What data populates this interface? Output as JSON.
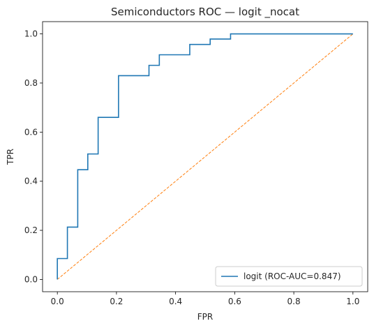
{
  "chart_data": {
    "type": "line",
    "title": "Semiconductors ROC — logit _nocat",
    "xlabel": "FPR",
    "ylabel": "TPR",
    "xlim": [
      -0.05,
      1.05
    ],
    "ylim": [
      -0.05,
      1.05
    ],
    "xticks": [
      "0.0",
      "0.2",
      "0.4",
      "0.6",
      "0.8",
      "1.0"
    ],
    "yticks": [
      "0.0",
      "0.2",
      "0.4",
      "0.6",
      "0.8",
      "1.0"
    ],
    "grid": false,
    "legend": "lower-right",
    "series": [
      {
        "name": "logit (ROC-AUC=0.847)",
        "color": "#1f77b4",
        "style": "solid",
        "x": [
          0,
          0,
          0.034,
          0.034,
          0.069,
          0.069,
          0.103,
          0.103,
          0.138,
          0.138,
          0.207,
          0.207,
          0.31,
          0.31,
          0.345,
          0.345,
          0.448,
          0.448,
          0.517,
          0.517,
          0.586,
          0.586,
          1.0
        ],
        "y": [
          0,
          0.085,
          0.085,
          0.213,
          0.213,
          0.447,
          0.447,
          0.511,
          0.511,
          0.66,
          0.66,
          0.83,
          0.83,
          0.872,
          0.872,
          0.915,
          0.915,
          0.957,
          0.957,
          0.979,
          0.979,
          1.0,
          1.0
        ]
      },
      {
        "name": "",
        "color": "#ff7f0e",
        "style": "dashed",
        "x": [
          0,
          1
        ],
        "y": [
          0,
          1
        ]
      }
    ]
  }
}
